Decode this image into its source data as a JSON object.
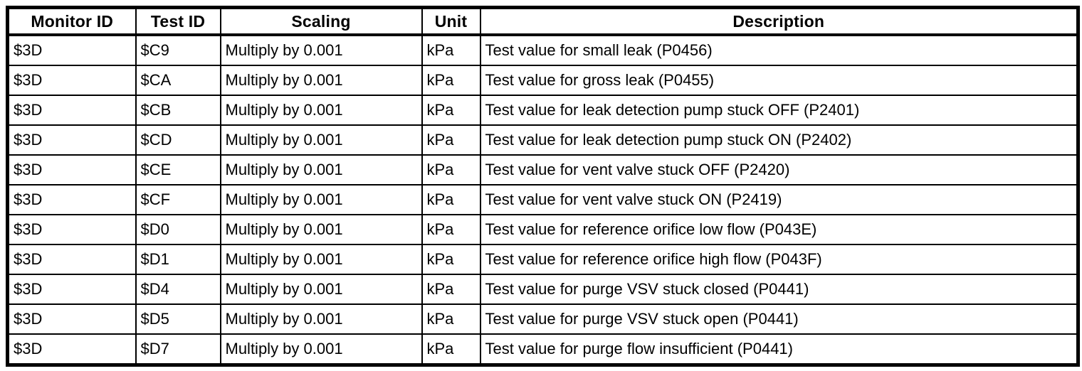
{
  "table": {
    "headers": [
      "Monitor ID",
      "Test ID",
      "Scaling",
      "Unit",
      "Description"
    ],
    "rows": [
      [
        "$3D",
        "$C9",
        "Multiply by 0.001",
        "kPa",
        "Test value for small leak (P0456)"
      ],
      [
        "$3D",
        "$CA",
        "Multiply by 0.001",
        "kPa",
        "Test value for gross leak (P0455)"
      ],
      [
        "$3D",
        "$CB",
        "Multiply by 0.001",
        "kPa",
        "Test value for leak detection pump stuck OFF (P2401)"
      ],
      [
        "$3D",
        "$CD",
        "Multiply by 0.001",
        "kPa",
        "Test value for leak detection pump stuck ON (P2402)"
      ],
      [
        "$3D",
        "$CE",
        "Multiply by 0.001",
        "kPa",
        "Test value for vent valve stuck OFF (P2420)"
      ],
      [
        "$3D",
        "$CF",
        "Multiply by 0.001",
        "kPa",
        "Test value for vent valve stuck ON (P2419)"
      ],
      [
        "$3D",
        "$D0",
        "Multiply by 0.001",
        "kPa",
        "Test value for reference orifice low flow (P043E)"
      ],
      [
        "$3D",
        "$D1",
        "Multiply by 0.001",
        "kPa",
        "Test value for reference orifice high flow (P043F)"
      ],
      [
        "$3D",
        "$D4",
        "Multiply by 0.001",
        "kPa",
        "Test value for purge VSV stuck closed (P0441)"
      ],
      [
        "$3D",
        "$D5",
        "Multiply by 0.001",
        "kPa",
        "Test value for purge VSV stuck open (P0441)"
      ],
      [
        "$3D",
        "$D7",
        "Multiply by 0.001",
        "kPa",
        "Test value for purge flow insufficient (P0441)"
      ]
    ]
  },
  "colors": {
    "border": "#000000",
    "text": "#000000",
    "page_background": "#ffffff"
  }
}
